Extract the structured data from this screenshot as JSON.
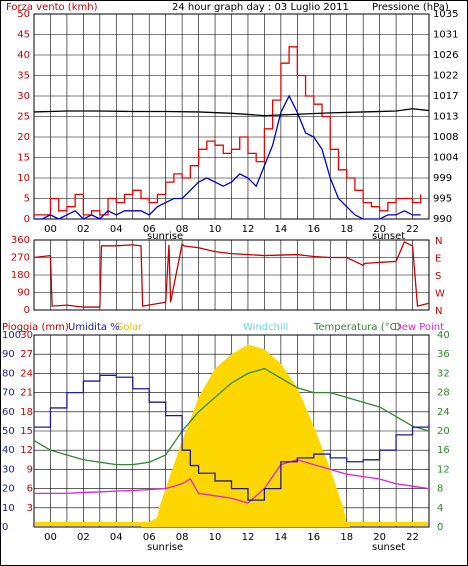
{
  "wind_header": {
    "left": "Forza vento (kmh)",
    "center": "24 hour graph day : 03 Luglio 2011",
    "right": "Pressione (hPa)"
  },
  "bottom_header": {
    "pioggia": "Pioggia (mm)",
    "umidita": "Umidita %",
    "solar": "Solar",
    "windchill": "Windchill",
    "temp": "Temperatura (°C)",
    "dew": "Dew Point"
  },
  "colors": {
    "wind": "#dd0000",
    "gust": "#ee0000",
    "avg": "#0000cc",
    "pressure": "#000000",
    "dir": "#cc0000",
    "rain": "#cc0000",
    "humidity": "#1a1aa0",
    "solar": "#ffd700",
    "windchill": "#66dddd",
    "temp": "#2e8b2e",
    "dew": "#dd22dd",
    "grid": "#000000"
  },
  "x_ticks": [
    "00",
    "02",
    "04",
    "06",
    "08",
    "10",
    "12",
    "14",
    "16",
    "18",
    "20",
    "22"
  ],
  "sunrise_label": "sunrise",
  "sunset_label": "sunset",
  "chart_data": [
    {
      "type": "line",
      "title": "24 hour graph day : 03 Luglio 2011",
      "xlabel": "",
      "ylabel": "Forza vento (kmh)",
      "y2label": "Pressione (hPa)",
      "ylim": [
        0,
        50
      ],
      "y_ticks": [
        0,
        5,
        10,
        15,
        20,
        25,
        30,
        35,
        40,
        45,
        50
      ],
      "y2_ticks": [
        "990",
        "995",
        "999",
        "1004",
        "1008",
        "1013",
        "1017",
        "1022",
        "1026",
        "1031",
        "1035"
      ],
      "y2lim": [
        990,
        1035
      ],
      "series": [
        {
          "name": "Gust",
          "x": [
            0,
            0.5,
            1,
            1.5,
            2,
            2.5,
            3,
            3.5,
            4,
            4.5,
            5,
            5.5,
            6,
            6.5,
            7,
            7.5,
            8,
            8.5,
            9,
            9.5,
            10,
            10.5,
            11,
            11.5,
            12,
            12.5,
            13,
            13.5,
            14,
            14.5,
            15,
            15.5,
            16,
            16.5,
            17,
            17.5,
            18,
            18.5,
            19,
            19.5,
            20,
            20.5,
            21,
            21.5,
            22,
            22.5,
            23,
            23.5
          ],
          "values": [
            1,
            1,
            5,
            2,
            3,
            6,
            1,
            2,
            1,
            5,
            4,
            6,
            7,
            5,
            4,
            6,
            9,
            11,
            10,
            13,
            17,
            19,
            18,
            16,
            17,
            20,
            16,
            14,
            22,
            29,
            38,
            42,
            35,
            30,
            28,
            25,
            17,
            12,
            10,
            7,
            4,
            3,
            2,
            4,
            5,
            5,
            4,
            6
          ]
        },
        {
          "name": "Average",
          "x": [
            0,
            0.5,
            1,
            1.5,
            2,
            2.5,
            3,
            3.5,
            4,
            4.5,
            5,
            5.5,
            6,
            6.5,
            7,
            7.5,
            8,
            8.5,
            9,
            9.5,
            10,
            10.5,
            11,
            11.5,
            12,
            12.5,
            13,
            13.5,
            14,
            14.5,
            15,
            15.5,
            16,
            16.5,
            17,
            17.5,
            18,
            18.5,
            19,
            19.5,
            20,
            20.5,
            21,
            21.5,
            22,
            22.5,
            23,
            23.5
          ],
          "values": [
            0,
            0,
            1,
            0,
            1,
            2,
            0,
            1,
            0,
            2,
            1,
            2,
            2,
            2,
            1,
            3,
            4,
            5,
            5,
            7,
            9,
            10,
            9,
            8,
            9,
            11,
            10,
            8,
            13,
            18,
            26,
            30,
            26,
            21,
            20,
            17,
            10,
            5,
            3,
            1,
            0,
            0,
            0,
            1,
            1,
            2,
            1,
            1
          ]
        },
        {
          "name": "Pressione",
          "x": [
            0,
            2,
            4,
            6,
            8,
            10,
            12,
            14,
            16,
            18,
            20,
            22,
            23,
            24
          ],
          "values": [
            1013.5,
            1013.7,
            1013.7,
            1013.6,
            1013.6,
            1013.5,
            1013.2,
            1012.7,
            1013.0,
            1013.3,
            1013.5,
            1013.7,
            1014.2,
            1013.8
          ]
        }
      ]
    },
    {
      "type": "line",
      "title": "",
      "ylabel": "",
      "ylim": [
        0,
        360
      ],
      "y_ticks": [
        0,
        90,
        180,
        270,
        360
      ],
      "y2_ticks": [
        "N",
        "W",
        "S",
        "E",
        "N"
      ],
      "series": [
        {
          "name": "Direzione",
          "x": [
            0,
            1,
            1.1,
            2,
            3,
            4,
            4.1,
            5,
            6,
            6.5,
            6.6,
            8,
            8.2,
            8.3,
            9,
            9.1,
            10,
            11,
            12,
            14,
            16,
            17,
            18,
            19,
            20,
            20.1,
            22,
            22.5,
            23,
            23.3,
            24
          ],
          "values": [
            270,
            280,
            20,
            25,
            15,
            15,
            330,
            330,
            335,
            330,
            20,
            40,
            335,
            40,
            340,
            330,
            320,
            300,
            290,
            280,
            285,
            275,
            270,
            270,
            230,
            240,
            250,
            350,
            330,
            20,
            35
          ]
        }
      ]
    },
    {
      "type": "line",
      "title": "",
      "ylabel": "Umidita %",
      "ylim": [
        0,
        100
      ],
      "y_ticks": [
        0,
        10,
        20,
        30,
        40,
        50,
        60,
        70,
        80,
        90,
        100
      ],
      "y_pioggia_ticks": [
        0,
        3,
        6,
        9,
        12,
        15,
        18,
        21,
        24,
        27,
        30
      ],
      "y_left2_ticks": [
        0,
        2,
        8,
        20,
        40,
        60,
        80,
        100
      ],
      "y2label": "Temperatura (°C)",
      "y2lim": [
        0,
        40
      ],
      "y2_ticks": [
        0,
        4,
        8,
        12,
        16,
        20,
        24,
        28,
        32,
        36,
        40
      ],
      "series": [
        {
          "name": "Umidita %",
          "x": [
            0,
            1,
            2,
            3,
            4,
            5,
            6,
            7,
            8,
            9,
            9.5,
            10,
            11,
            12,
            13,
            14,
            15,
            16,
            17,
            18,
            19,
            20,
            21,
            22,
            23,
            24
          ],
          "values": [
            52,
            62,
            70,
            76,
            79,
            78,
            72,
            65,
            58,
            40,
            32,
            28,
            24,
            20,
            14,
            20,
            34,
            36,
            38,
            36,
            34,
            35,
            40,
            48,
            52,
            54
          ]
        },
        {
          "name": "Temperatura (°C)",
          "x": [
            0,
            1,
            2,
            3,
            4,
            5,
            6,
            7,
            8,
            9,
            10,
            11,
            12,
            13,
            14,
            15,
            16,
            17,
            18,
            19,
            20,
            21,
            22,
            23,
            24
          ],
          "values": [
            18,
            16,
            15,
            14,
            13.5,
            13,
            13,
            13.5,
            15,
            20,
            24,
            27,
            30,
            32,
            33,
            31,
            29,
            28,
            28,
            27,
            26,
            25,
            23,
            21,
            20
          ]
        },
        {
          "name": "Dew Point",
          "x": [
            0,
            1,
            2,
            3,
            4,
            5,
            6,
            7,
            8,
            9,
            9.5,
            10,
            11,
            12,
            13,
            14,
            15,
            16,
            17,
            18,
            19,
            20,
            21,
            22,
            23,
            24
          ],
          "values": [
            7,
            7,
            7,
            7.2,
            7.3,
            7.5,
            7.6,
            7.8,
            8,
            9,
            10,
            7,
            6.5,
            6,
            5,
            8,
            13,
            14,
            13,
            12,
            11,
            10.5,
            10,
            9,
            8.5,
            8
          ]
        },
        {
          "name": "Solar",
          "x": [
            0,
            6.5,
            7.5,
            7.6,
            8,
            9,
            10,
            11,
            12,
            13,
            14,
            15,
            16,
            17,
            18,
            18.8,
            19,
            19.2,
            24
          ],
          "values": [
            0,
            0,
            2,
            4,
            8,
            18,
            27,
            33,
            36,
            38,
            37,
            34,
            29,
            21,
            12,
            4,
            1,
            0,
            0
          ]
        },
        {
          "name": "Pioggia (mm)",
          "x": [
            0,
            24
          ],
          "values": [
            0,
            0
          ]
        }
      ]
    }
  ]
}
